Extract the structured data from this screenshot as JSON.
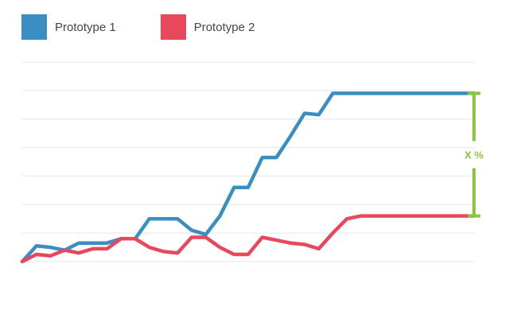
{
  "colors": {
    "grid": "#e6e6e6",
    "annotation": "#8cc63f"
  },
  "chart_data": {
    "type": "line",
    "title": "",
    "xlabel": "",
    "ylabel": "",
    "grid": true,
    "legend": "top-left",
    "x": [
      0,
      1,
      2,
      3,
      4,
      5,
      6,
      7,
      8,
      9,
      10,
      11,
      12,
      13,
      14,
      15,
      16,
      17,
      18,
      19,
      20,
      21,
      22,
      23,
      24,
      25,
      26,
      27,
      28,
      29,
      30,
      31,
      32
    ],
    "xlim": [
      0,
      32
    ],
    "ylim": [
      0,
      7
    ],
    "gridlines": [
      0,
      1,
      2,
      3,
      4,
      5,
      6,
      7
    ],
    "series": [
      {
        "name": "Prototype 1",
        "color": "#3a8ec4",
        "values": [
          0.0,
          0.55,
          0.5,
          0.4,
          0.65,
          0.65,
          0.65,
          0.8,
          0.8,
          1.5,
          1.5,
          1.5,
          1.1,
          0.95,
          1.6,
          2.6,
          2.6,
          3.65,
          3.65,
          4.4,
          5.2,
          5.15,
          5.9,
          5.9,
          5.9,
          5.9,
          5.9,
          5.9,
          5.9,
          5.9,
          5.9,
          5.9,
          5.9
        ]
      },
      {
        "name": "Prototype 2",
        "color": "#e8485c",
        "values": [
          0.0,
          0.25,
          0.2,
          0.4,
          0.3,
          0.45,
          0.45,
          0.8,
          0.8,
          0.5,
          0.35,
          0.3,
          0.85,
          0.85,
          0.5,
          0.25,
          0.25,
          0.85,
          0.75,
          0.65,
          0.6,
          0.45,
          1.0,
          1.5,
          1.6,
          1.6,
          1.6,
          1.6,
          1.6,
          1.6,
          1.6,
          1.6,
          1.6
        ]
      }
    ],
    "annotation": {
      "label": "X %",
      "from_series": "Prototype 2",
      "to_series": "Prototype 1",
      "at": "end"
    }
  }
}
